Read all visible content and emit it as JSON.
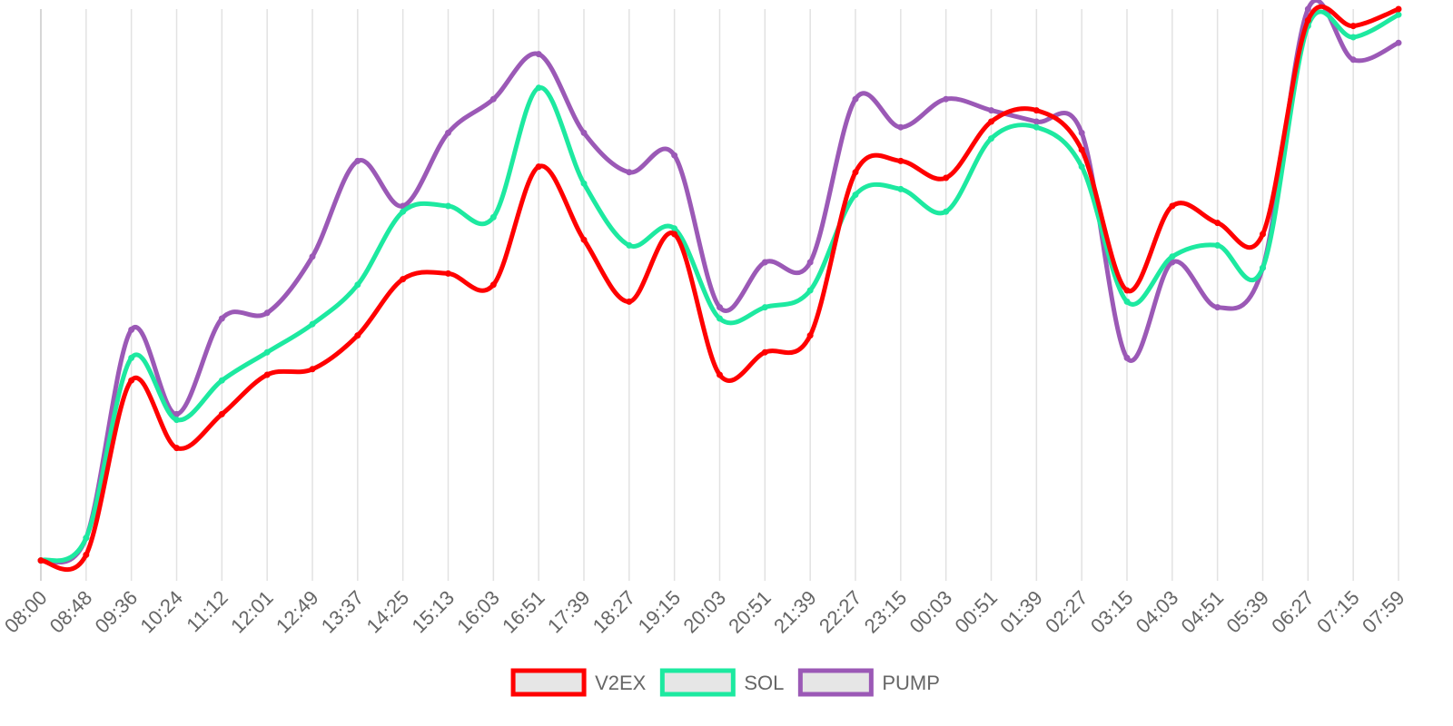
{
  "chart_data": {
    "type": "line",
    "title": "",
    "xlabel": "",
    "ylabel": "",
    "ylim": [
      0,
      100
    ],
    "grid": true,
    "legend_position": "bottom-center",
    "x": [
      "08:00",
      "08:48",
      "09:36",
      "10:24",
      "11:12",
      "12:01",
      "12:49",
      "13:37",
      "14:25",
      "15:13",
      "16:03",
      "16:51",
      "17:39",
      "18:27",
      "19:15",
      "20:03",
      "20:51",
      "21:39",
      "22:27",
      "23:15",
      "00:03",
      "00:51",
      "01:39",
      "02:27",
      "03:15",
      "04:03",
      "04:51",
      "05:39",
      "06:27",
      "07:15",
      "07:59"
    ],
    "series": [
      {
        "name": "V2EX",
        "color": "#ff0000",
        "values": [
          2,
          3,
          34,
          22,
          28,
          35,
          36,
          42,
          52,
          53,
          51,
          72,
          59,
          48,
          60,
          35,
          39,
          42,
          71,
          73,
          70,
          80,
          82,
          75,
          50,
          65,
          62,
          60,
          98,
          97,
          100
        ]
      },
      {
        "name": "SOL",
        "color": "#1de9a0",
        "values": [
          2,
          6,
          38,
          27,
          34,
          39,
          44,
          51,
          64,
          65,
          63,
          86,
          69,
          58,
          61,
          45,
          47,
          50,
          67,
          68,
          64,
          77,
          79,
          72,
          48,
          56,
          58,
          54,
          97,
          95,
          99
        ]
      },
      {
        "name": "PUMP",
        "color": "#9b59b6",
        "values": [
          2,
          6,
          43,
          28,
          45,
          46,
          56,
          73,
          65,
          78,
          84,
          92,
          78,
          71,
          74,
          47,
          55,
          55,
          84,
          79,
          84,
          82,
          80,
          78,
          38,
          55,
          47,
          54,
          100,
          91,
          94
        ]
      }
    ]
  }
}
